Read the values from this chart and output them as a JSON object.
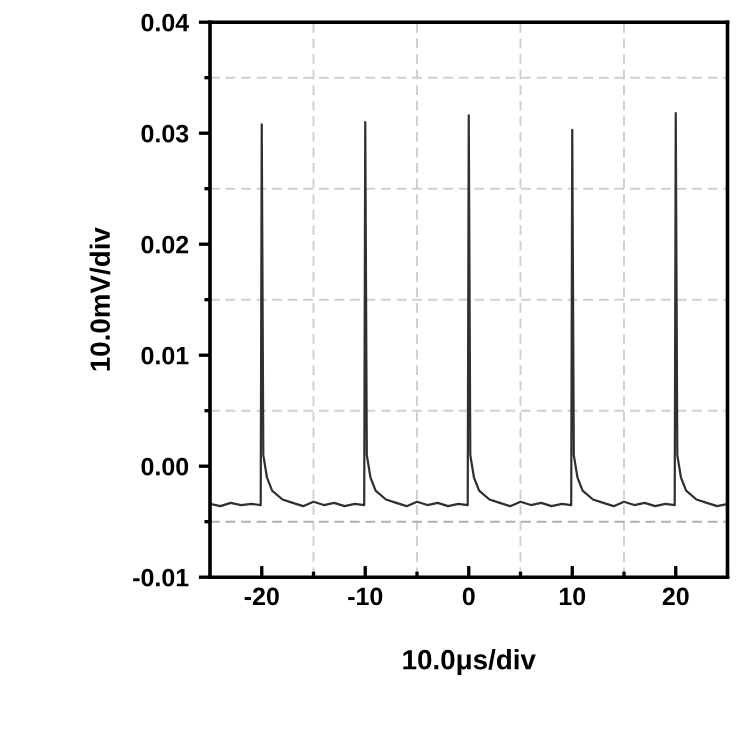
{
  "chart_data": {
    "type": "line",
    "xlabel": "10.0μs/div",
    "ylabel": "10.0mV/div",
    "xlim": [
      -25,
      25
    ],
    "ylim": [
      -0.01,
      0.04
    ],
    "xticks": [
      -20,
      {
        "value": -15,
        "label": null
      },
      -10,
      {
        "value": -5,
        "label": null
      },
      0,
      {
        "value": 5,
        "label": null
      },
      10,
      {
        "value": 15,
        "label": null
      },
      20
    ],
    "yticks": [
      -0.01,
      {
        "value": -0.005,
        "label": null
      },
      {
        "value": 0,
        "label": "0.00"
      },
      {
        "value": 0.005,
        "label": null
      },
      0.01,
      {
        "value": 0.015,
        "label": null
      },
      0.02,
      {
        "value": 0.025,
        "label": null
      },
      0.03,
      {
        "value": 0.035,
        "label": null
      },
      0.04
    ],
    "grid": false,
    "legend": false,
    "marker": "none",
    "line_style": "solid",
    "ref_lines": [
      {
        "axis": "x",
        "value": -15,
        "color": "#d0d0d0",
        "line_style": "dashed"
      },
      {
        "axis": "x",
        "value": -5,
        "color": "#d0d0d0",
        "line_style": "dashed"
      },
      {
        "axis": "x",
        "value": 5,
        "color": "#d0d0d0",
        "line_style": "dashed"
      },
      {
        "axis": "x",
        "value": 15,
        "color": "#d0d0d0",
        "line_style": "dashed"
      },
      {
        "axis": "y",
        "value": -0.005,
        "color": "#b0b0b0",
        "line_style": "dashed"
      },
      {
        "axis": "y",
        "value": 0.005,
        "color": "#d0d0d0",
        "line_style": "dashed"
      },
      {
        "axis": "y",
        "value": 0.015,
        "color": "#d0d0d0",
        "line_style": "dashed"
      },
      {
        "axis": "y",
        "value": 0.025,
        "color": "#d0d0d0",
        "line_style": "dashed"
      },
      {
        "axis": "y",
        "value": 0.035,
        "color": "#d0d0d0",
        "line_style": "dashed"
      }
    ],
    "series": [
      {
        "color": "#303030",
        "x": [
          -25,
          -24,
          -23,
          -22,
          -21,
          -20.1,
          -20,
          -19.85,
          -19.5,
          -19,
          -18,
          -17,
          -16,
          -15,
          -14,
          -13,
          -12,
          -11,
          -10.1,
          -10,
          -9.85,
          -9.5,
          -9,
          -8,
          -7,
          -6,
          -5,
          -4,
          -3,
          -2,
          -1,
          -0.1,
          0,
          0.15,
          0.5,
          1,
          2,
          3,
          4,
          5,
          6,
          7,
          8,
          9,
          9.9,
          10,
          10.15,
          10.5,
          11,
          12,
          13,
          14,
          15,
          16,
          17,
          18,
          19,
          19.9,
          20,
          20.15,
          20.5,
          21,
          22,
          23,
          24,
          25
        ],
        "values": [
          -0.0034,
          -0.0036,
          -0.0033,
          -0.0035,
          -0.0034,
          -0.0035,
          0.0308,
          0.001,
          -0.001,
          -0.0022,
          -0.003,
          -0.0033,
          -0.0036,
          -0.0032,
          -0.0035,
          -0.0033,
          -0.0036,
          -0.0034,
          -0.0035,
          0.031,
          0.001,
          -0.001,
          -0.0022,
          -0.003,
          -0.0033,
          -0.0036,
          -0.0032,
          -0.0035,
          -0.0033,
          -0.0036,
          -0.0034,
          -0.0035,
          0.0316,
          0.001,
          -0.001,
          -0.0022,
          -0.003,
          -0.0033,
          -0.0036,
          -0.0032,
          -0.0035,
          -0.0033,
          -0.0036,
          -0.0034,
          -0.0035,
          0.0303,
          0.001,
          -0.001,
          -0.0022,
          -0.003,
          -0.0033,
          -0.0036,
          -0.0032,
          -0.0035,
          -0.0033,
          -0.0036,
          -0.0034,
          -0.0035,
          0.0318,
          0.001,
          -0.001,
          -0.0022,
          -0.003,
          -0.0033,
          -0.0036,
          -0.0034
        ]
      }
    ]
  }
}
